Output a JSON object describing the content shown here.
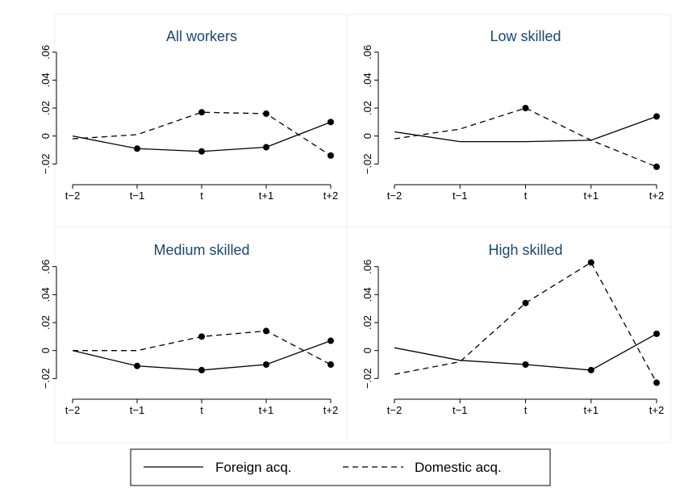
{
  "chart_data": [
    {
      "type": "line",
      "title": "All workers",
      "categories": [
        "t−2",
        "t−1",
        "t",
        "t+1",
        "t+2"
      ],
      "y_ticks": [
        -0.02,
        0,
        0.02,
        0.04,
        0.06
      ],
      "y_tick_labels": [
        "−.02",
        "0",
        ".02",
        ".04",
        ".06"
      ],
      "ylim": [
        -0.025,
        0.065
      ],
      "grid": false,
      "series": [
        {
          "name": "Foreign acq.",
          "values": [
            0.0,
            -0.009,
            -0.011,
            -0.008,
            0.01
          ]
        },
        {
          "name": "Domestic acq.",
          "values": [
            -0.002,
            0.001,
            0.017,
            0.016,
            -0.014
          ]
        }
      ]
    },
    {
      "type": "line",
      "title": "Low skilled",
      "categories": [
        "t−2",
        "t−1",
        "t",
        "t+1",
        "t+2"
      ],
      "y_ticks": [
        -0.02,
        0,
        0.02,
        0.04,
        0.06
      ],
      "y_tick_labels": [
        "−.02",
        "0",
        ".02",
        ".04",
        ".06"
      ],
      "ylim": [
        -0.025,
        0.065
      ],
      "grid": false,
      "series": [
        {
          "name": "Foreign acq.",
          "values": [
            0.003,
            -0.004,
            -0.004,
            -0.003,
            0.014
          ]
        },
        {
          "name": "Domestic acq.",
          "values": [
            -0.002,
            0.005,
            0.02,
            -0.003,
            -0.022
          ]
        }
      ]
    },
    {
      "type": "line",
      "title": "Medium skilled",
      "categories": [
        "t−2",
        "t−1",
        "t",
        "t+1",
        "t+2"
      ],
      "y_ticks": [
        -0.02,
        0,
        0.02,
        0.04,
        0.06
      ],
      "y_tick_labels": [
        "−.02",
        "0",
        ".02",
        ".04",
        ".06"
      ],
      "ylim": [
        -0.025,
        0.065
      ],
      "grid": false,
      "series": [
        {
          "name": "Foreign acq.",
          "values": [
            0.0,
            -0.011,
            -0.014,
            -0.01,
            0.007
          ]
        },
        {
          "name": "Domestic acq.",
          "values": [
            0.0,
            0.0,
            0.01,
            0.014,
            -0.01
          ]
        }
      ]
    },
    {
      "type": "line",
      "title": "High skilled",
      "categories": [
        "t−2",
        "t−1",
        "t",
        "t+1",
        "t+2"
      ],
      "y_ticks": [
        -0.02,
        0,
        0.02,
        0.04,
        0.06
      ],
      "y_tick_labels": [
        "−.02",
        "0",
        ".02",
        ".04",
        ".06"
      ],
      "ylim": [
        -0.025,
        0.065
      ],
      "grid": false,
      "series": [
        {
          "name": "Foreign acq.",
          "values": [
            0.002,
            -0.007,
            -0.01,
            -0.014,
            0.012
          ]
        },
        {
          "name": "Domestic acq.",
          "values": [
            -0.017,
            -0.008,
            0.034,
            0.063,
            -0.023
          ]
        }
      ]
    }
  ],
  "legend": {
    "placement": "bottom",
    "items": [
      {
        "label": "Foreign acq.",
        "style": "solid"
      },
      {
        "label": "Domestic acq.",
        "style": "dashed"
      }
    ]
  },
  "colors": {
    "title": "#1a476f",
    "line": "#000000",
    "panel_border": "#eaf2f3",
    "background": "#ffffff"
  }
}
